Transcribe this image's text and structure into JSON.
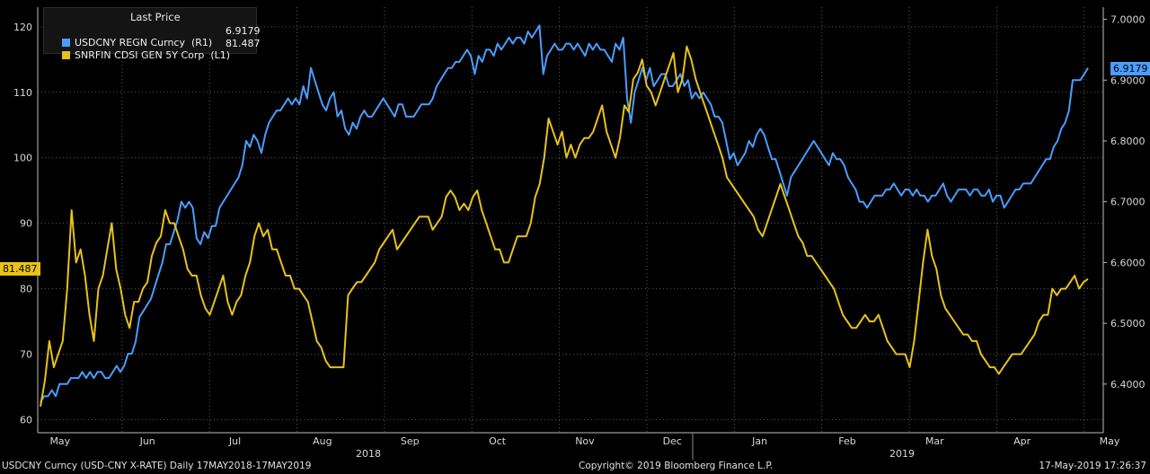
{
  "legend": {
    "title": "Last Price",
    "rows": [
      {
        "label": "USDCNY REGN Curncy  (R1)",
        "value": "6.9179",
        "color": "#4a9dff"
      },
      {
        "label": "SNRFIN CDSI GEN 5Y Corp  (L1)",
        "value": "81.487",
        "color": "#e8c21a"
      }
    ]
  },
  "tags": {
    "left": "81.487",
    "right": "6.9179"
  },
  "footer": {
    "left": "USDCNY Curncy (USD-CNY X-RATE)  Daily 17MAY2018-17MAY2019",
    "center": "Copyright© 2019 Bloomberg Finance L.P.",
    "right": "17-May-2019 17:26:37"
  },
  "chart_data": {
    "type": "line",
    "x_tick_labels": [
      "May",
      "Jun",
      "Jul",
      "Aug",
      "Sep",
      "Oct",
      "Nov",
      "Dec",
      "Jan",
      "Feb",
      "Mar",
      "Apr",
      "May"
    ],
    "x_year_labels": [
      "2018",
      "2019"
    ],
    "left_axis": {
      "ticks": [
        "120",
        "110",
        "100",
        "90",
        "80",
        "70",
        "60"
      ],
      "ylim": [
        58,
        123
      ]
    },
    "right_axis": {
      "ticks": [
        "7.0000",
        "6.9000",
        "6.8000",
        "6.7000",
        "6.6000",
        "6.5000",
        "6.4000"
      ],
      "ylim": [
        6.32,
        7.02
      ]
    },
    "grid": true,
    "legend_placement": "top-left",
    "series": [
      {
        "name": "USDCNY REGN Curncy",
        "axis": "right",
        "color": "#4a9dff",
        "values": [
          6.37,
          6.38,
          6.38,
          6.39,
          6.38,
          6.4,
          6.4,
          6.4,
          6.41,
          6.41,
          6.41,
          6.42,
          6.41,
          6.42,
          6.41,
          6.42,
          6.42,
          6.41,
          6.41,
          6.42,
          6.43,
          6.42,
          6.43,
          6.45,
          6.45,
          6.47,
          6.51,
          6.52,
          6.53,
          6.54,
          6.56,
          6.58,
          6.6,
          6.63,
          6.63,
          6.65,
          6.67,
          6.7,
          6.69,
          6.7,
          6.69,
          6.64,
          6.63,
          6.65,
          6.64,
          6.66,
          6.66,
          6.69,
          6.7,
          6.71,
          6.72,
          6.73,
          6.74,
          6.76,
          6.8,
          6.79,
          6.81,
          6.8,
          6.78,
          6.81,
          6.83,
          6.84,
          6.85,
          6.85,
          6.86,
          6.87,
          6.86,
          6.87,
          6.86,
          6.89,
          6.87,
          6.92,
          6.9,
          6.88,
          6.86,
          6.85,
          6.87,
          6.88,
          6.84,
          6.85,
          6.82,
          6.81,
          6.83,
          6.82,
          6.84,
          6.85,
          6.84,
          6.84,
          6.85,
          6.86,
          6.87,
          6.86,
          6.85,
          6.84,
          6.86,
          6.86,
          6.84,
          6.84,
          6.84,
          6.85,
          6.86,
          6.86,
          6.86,
          6.87,
          6.89,
          6.9,
          6.91,
          6.92,
          6.92,
          6.93,
          6.93,
          6.94,
          6.95,
          6.94,
          6.91,
          6.94,
          6.93,
          6.95,
          6.95,
          6.94,
          6.96,
          6.95,
          6.96,
          6.97,
          6.96,
          6.97,
          6.97,
          6.96,
          6.98,
          6.97,
          6.98,
          6.99,
          6.91,
          6.94,
          6.95,
          6.96,
          6.95,
          6.95,
          6.96,
          6.96,
          6.95,
          6.96,
          6.95,
          6.94,
          6.96,
          6.95,
          6.96,
          6.95,
          6.95,
          6.94,
          6.93,
          6.96,
          6.95,
          6.97,
          6.87,
          6.83,
          6.88,
          6.9,
          6.92,
          6.9,
          6.92,
          6.89,
          6.9,
          6.91,
          6.91,
          6.89,
          6.89,
          6.9,
          6.91,
          6.89,
          6.9,
          6.87,
          6.88,
          6.87,
          6.88,
          6.87,
          6.86,
          6.84,
          6.84,
          6.83,
          6.8,
          6.77,
          6.78,
          6.76,
          6.77,
          6.78,
          6.8,
          6.79,
          6.81,
          6.82,
          6.81,
          6.79,
          6.77,
          6.77,
          6.75,
          6.73,
          6.71,
          6.74,
          6.75,
          6.76,
          6.77,
          6.78,
          6.79,
          6.8,
          6.79,
          6.78,
          6.77,
          6.76,
          6.78,
          6.77,
          6.77,
          6.76,
          6.74,
          6.73,
          6.72,
          6.7,
          6.7,
          6.69,
          6.7,
          6.71,
          6.71,
          6.71,
          6.72,
          6.72,
          6.73,
          6.72,
          6.71,
          6.72,
          6.72,
          6.71,
          6.72,
          6.71,
          6.71,
          6.7,
          6.71,
          6.71,
          6.72,
          6.73,
          6.71,
          6.7,
          6.71,
          6.72,
          6.72,
          6.72,
          6.71,
          6.72,
          6.72,
          6.71,
          6.71,
          6.72,
          6.7,
          6.71,
          6.71,
          6.69,
          6.7,
          6.71,
          6.72,
          6.72,
          6.73,
          6.73,
          6.73,
          6.74,
          6.75,
          6.76,
          6.77,
          6.77,
          6.79,
          6.8,
          6.82,
          6.83,
          6.85,
          6.9,
          6.9,
          6.9,
          6.91,
          6.92
        ]
      },
      {
        "name": "SNRFIN CDSI GEN 5Y Corp",
        "axis": "left",
        "color": "#e8c21a",
        "values": [
          62,
          66,
          72,
          68,
          70,
          72,
          80,
          92,
          84,
          86,
          82,
          76,
          72,
          80,
          82,
          86,
          90,
          83,
          80,
          76,
          74,
          78,
          78,
          80,
          81,
          85,
          87,
          88,
          92,
          90,
          90,
          88,
          86,
          83,
          82,
          82,
          79,
          77,
          76,
          78,
          80,
          82,
          78,
          76,
          78,
          79,
          82,
          84,
          88,
          90,
          88,
          89,
          86,
          86,
          84,
          82,
          82,
          80,
          80,
          79,
          78,
          75,
          72,
          71,
          69,
          68,
          68,
          68,
          68,
          79,
          80,
          81,
          81,
          82,
          83,
          84,
          86,
          87,
          88,
          89,
          86,
          87,
          88,
          89,
          90,
          91,
          91,
          91,
          89,
          90,
          91,
          94,
          95,
          94,
          92,
          93,
          92,
          94,
          95,
          92,
          90,
          88,
          86,
          86,
          84,
          84,
          86,
          88,
          88,
          88,
          90,
          94,
          96,
          100,
          106,
          104,
          102,
          104,
          100,
          102,
          100,
          102,
          103,
          103,
          104,
          106,
          108,
          104,
          102,
          100,
          103,
          108,
          107,
          112,
          113,
          115,
          111,
          110,
          108,
          110,
          112,
          114,
          116,
          110,
          112,
          117,
          115,
          112,
          110,
          108,
          106,
          104,
          102,
          100,
          97,
          96,
          95,
          94,
          93,
          92,
          91,
          89,
          88,
          90,
          92,
          94,
          96,
          94,
          92,
          90,
          88,
          87,
          85,
          85,
          84,
          83,
          82,
          81,
          80,
          78,
          76,
          75,
          74,
          74,
          75,
          76,
          75,
          75,
          76,
          74,
          72,
          71,
          70,
          70,
          70,
          68,
          72,
          78,
          84,
          89,
          85,
          83,
          79,
          77,
          76,
          75,
          74,
          73,
          73,
          72,
          72,
          70,
          69,
          68,
          68,
          67,
          68,
          69,
          70,
          70,
          70,
          71,
          72,
          73,
          75,
          76,
          76,
          80,
          79,
          80,
          80,
          81,
          82,
          80,
          81,
          81.487
        ]
      }
    ]
  }
}
